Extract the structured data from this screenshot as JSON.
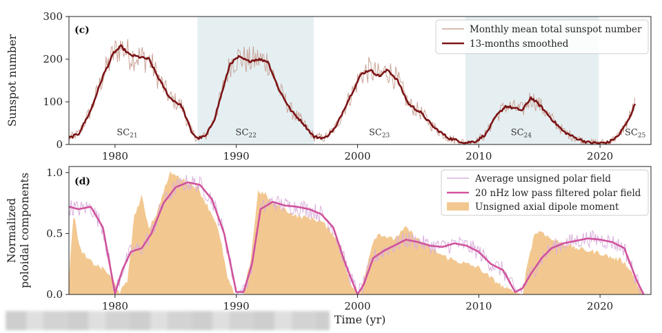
{
  "chart_data": [
    {
      "type": "line",
      "panel": "(c)",
      "xlabel": "",
      "ylabel": "Sunspot number",
      "xlim": [
        1976.2,
        2024.2
      ],
      "ylim": [
        0,
        300
      ],
      "xticks": [
        "1980",
        "1990",
        "2000",
        "2010",
        "2020"
      ],
      "yticks": [
        "0",
        "100",
        "200",
        "300"
      ],
      "shaded_spans": [
        [
          1986.8,
          1996.4
        ],
        [
          2008.9,
          2019.9
        ]
      ],
      "cycle_labels": [
        {
          "base": "SC",
          "sub": "21",
          "x": 1981.0,
          "y": 22
        },
        {
          "base": "SC",
          "sub": "22",
          "x": 1990.8,
          "y": 22
        },
        {
          "base": "SC",
          "sub": "23",
          "x": 2001.8,
          "y": 22
        },
        {
          "base": "SC",
          "sub": "24",
          "x": 2013.5,
          "y": 22
        },
        {
          "base": "SC",
          "sub": "25",
          "x": 2022.9,
          "y": 22
        }
      ],
      "legend": {
        "placement": "top-right"
      },
      "series": [
        {
          "name": "Monthly mean total sunspot number",
          "color": "#c9a497",
          "style": "noisy",
          "x": [
            1976.2,
            1977,
            1978,
            1979,
            1979.9,
            1980.5,
            1981.2,
            1982,
            1982.8,
            1983.5,
            1984.5,
            1985.5,
            1986.3,
            1986.8,
            1987.5,
            1988.2,
            1988.9,
            1989.5,
            1990.2,
            1991,
            1991.8,
            1992.6,
            1993.5,
            1994.5,
            1995.5,
            1996.4,
            1997.3,
            1998.2,
            1999,
            1999.7,
            2000.3,
            2001,
            2001.8,
            2002.5,
            2003.3,
            2004.2,
            2005.2,
            2006.3,
            2007.5,
            2008.9,
            2009.8,
            2010.6,
            2011.4,
            2012.2,
            2012.9,
            2013.6,
            2014.3,
            2015.1,
            2016,
            2017,
            2018,
            2019,
            2019.9,
            2020.7,
            2021.5,
            2022.3,
            2022.9
          ],
          "y": [
            15,
            25,
            80,
            160,
            215,
            230,
            210,
            205,
            200,
            160,
            110,
            90,
            30,
            14,
            20,
            60,
            130,
            190,
            205,
            195,
            200,
            195,
            130,
            80,
            50,
            18,
            15,
            40,
            90,
            130,
            165,
            175,
            160,
            175,
            150,
            95,
            75,
            40,
            15,
            4,
            8,
            25,
            65,
            90,
            85,
            80,
            110,
            90,
            60,
            30,
            15,
            5,
            3,
            5,
            20,
            55,
            95
          ],
          "noise": 30
        },
        {
          "name": "13-months smoothed",
          "color": "#7b1416",
          "x": [
            1976.2,
            1977,
            1978,
            1979,
            1979.9,
            1980.5,
            1981.2,
            1982,
            1982.8,
            1983.5,
            1984.5,
            1985.5,
            1986.3,
            1986.8,
            1987.5,
            1988.2,
            1988.9,
            1989.5,
            1990.2,
            1991,
            1991.8,
            1992.6,
            1993.5,
            1994.5,
            1995.5,
            1996.4,
            1997.3,
            1998.2,
            1999,
            1999.7,
            2000.3,
            2001,
            2001.8,
            2002.5,
            2003.3,
            2004.2,
            2005.2,
            2006.3,
            2007.5,
            2008.9,
            2009.8,
            2010.6,
            2011.4,
            2012.2,
            2012.9,
            2013.6,
            2014.3,
            2015.1,
            2016,
            2017,
            2018,
            2019,
            2019.9,
            2020.7,
            2021.5,
            2022.3,
            2022.9
          ],
          "y": [
            15,
            25,
            80,
            160,
            215,
            230,
            210,
            205,
            200,
            160,
            110,
            90,
            30,
            14,
            20,
            60,
            130,
            190,
            205,
            195,
            200,
            195,
            130,
            80,
            50,
            18,
            15,
            40,
            90,
            130,
            165,
            175,
            160,
            175,
            150,
            95,
            75,
            40,
            15,
            4,
            8,
            25,
            65,
            90,
            85,
            80,
            110,
            90,
            60,
            30,
            15,
            5,
            3,
            5,
            20,
            55,
            95
          ]
        }
      ]
    },
    {
      "type": "line",
      "panel": "(d)",
      "xlabel": "Time (yr)",
      "ylabel_line1": "Normalized",
      "ylabel_line2": "poloidal components",
      "xlim": [
        1976.2,
        2024.2
      ],
      "ylim": [
        0,
        1.05
      ],
      "xticks": [
        "1980",
        "1990",
        "2000",
        "2010",
        "2020"
      ],
      "yticks": [
        "0.0",
        "0.5",
        "1.0"
      ],
      "legend": {
        "placement": "top-right"
      },
      "series": [
        {
          "name": "Average unsigned polar field",
          "color": "#d9b0dc",
          "style": "noisy",
          "x": [
            1976.2,
            1977,
            1978,
            1979,
            1980,
            1980.6,
            1981.3,
            1982.2,
            1983,
            1984,
            1985,
            1986,
            1987,
            1988,
            1989,
            1990,
            1990.6,
            1991.3,
            1992,
            1993,
            1994,
            1995,
            1996,
            1997,
            1998,
            1999,
            2000,
            2000.5,
            2001.3,
            2002.2,
            2003,
            2004,
            2005,
            2006,
            2007,
            2008,
            2009,
            2010,
            2011,
            2012,
            2013,
            2013.6,
            2014.3,
            2015.2,
            2016,
            2017,
            2018,
            2019,
            2020,
            2021,
            2022,
            2023,
            2023.6
          ],
          "y": [
            0.72,
            0.7,
            0.72,
            0.55,
            0.01,
            0.2,
            0.35,
            0.38,
            0.5,
            0.75,
            0.88,
            0.92,
            0.9,
            0.78,
            0.5,
            0.02,
            0.02,
            0.25,
            0.7,
            0.76,
            0.73,
            0.72,
            0.7,
            0.66,
            0.55,
            0.25,
            0.0,
            0.08,
            0.3,
            0.36,
            0.4,
            0.45,
            0.43,
            0.4,
            0.39,
            0.42,
            0.4,
            0.35,
            0.25,
            0.2,
            0.02,
            0.05,
            0.17,
            0.3,
            0.38,
            0.42,
            0.44,
            0.46,
            0.45,
            0.43,
            0.38,
            0.12,
            0.0
          ],
          "noise": 0.07
        },
        {
          "name": "20 nHz low pass filtered polar field",
          "color": "#d0529c",
          "x": [
            1976.2,
            1977,
            1978,
            1979,
            1980,
            1980.6,
            1981.3,
            1982.2,
            1983,
            1984,
            1985,
            1986,
            1987,
            1988,
            1989,
            1990,
            1990.6,
            1991.3,
            1992,
            1993,
            1994,
            1995,
            1996,
            1997,
            1998,
            1999,
            2000,
            2000.5,
            2001.3,
            2002.2,
            2003,
            2004,
            2005,
            2006,
            2007,
            2008,
            2009,
            2010,
            2011,
            2012,
            2013,
            2013.6,
            2014.3,
            2015.2,
            2016,
            2017,
            2018,
            2019,
            2020,
            2021,
            2022,
            2023,
            2023.6
          ],
          "y": [
            0.72,
            0.7,
            0.72,
            0.55,
            0.01,
            0.2,
            0.35,
            0.38,
            0.5,
            0.75,
            0.88,
            0.92,
            0.9,
            0.78,
            0.5,
            0.02,
            0.02,
            0.25,
            0.7,
            0.76,
            0.73,
            0.72,
            0.7,
            0.66,
            0.55,
            0.25,
            0.0,
            0.08,
            0.3,
            0.36,
            0.4,
            0.45,
            0.43,
            0.4,
            0.39,
            0.42,
            0.4,
            0.35,
            0.25,
            0.2,
            0.02,
            0.05,
            0.17,
            0.3,
            0.38,
            0.42,
            0.44,
            0.46,
            0.45,
            0.43,
            0.38,
            0.12,
            0.0
          ]
        },
        {
          "name": "Unsigned axial dipole moment",
          "color": "#f2c890",
          "style": "area",
          "x": [
            1976.2,
            1976.6,
            1977.0,
            1977.6,
            1978.3,
            1979.2,
            1979.9,
            1980.4,
            1981.0,
            1981.6,
            1982.2,
            1982.8,
            1983.5,
            1984.0,
            1984.6,
            1985.3,
            1986,
            1986.8,
            1987.5,
            1988.3,
            1988.8,
            1989.3,
            1989.9,
            1990.6,
            1991.2,
            1991.8,
            1992.4,
            1993.0,
            1994,
            1995,
            1996,
            1997,
            1998,
            1998.7,
            1999.4,
            2000.2,
            2000.8,
            2001.3,
            2001.8,
            2002.3,
            2002.9,
            2003.5,
            2004,
            2005,
            2006,
            2007,
            2008,
            2009,
            2010,
            2010.8,
            2011.5,
            2012.2,
            2012.9,
            2013.6,
            2014.0,
            2014.6,
            2015.2,
            2016,
            2017,
            2018,
            2019,
            2020,
            2021,
            2021.8,
            2022.4,
            2023,
            2023.5,
            2024.2
          ],
          "y": [
            0.12,
            0.7,
            0.4,
            0.3,
            0.25,
            0.2,
            0.1,
            0.02,
            0.1,
            0.65,
            0.8,
            0.55,
            0.68,
            0.85,
            1.0,
            0.96,
            0.92,
            0.88,
            0.75,
            0.6,
            0.4,
            0.12,
            0.0,
            0.0,
            0.3,
            0.85,
            0.82,
            0.75,
            0.7,
            0.64,
            0.63,
            0.6,
            0.5,
            0.35,
            0.08,
            0.0,
            0.25,
            0.45,
            0.5,
            0.48,
            0.45,
            0.5,
            0.55,
            0.45,
            0.38,
            0.32,
            0.28,
            0.25,
            0.22,
            0.15,
            0.1,
            0.05,
            0.02,
            0.0,
            0.25,
            0.5,
            0.52,
            0.45,
            0.42,
            0.38,
            0.36,
            0.34,
            0.3,
            0.28,
            0.22,
            0.1,
            0.0,
            0.0
          ]
        }
      ]
    }
  ]
}
